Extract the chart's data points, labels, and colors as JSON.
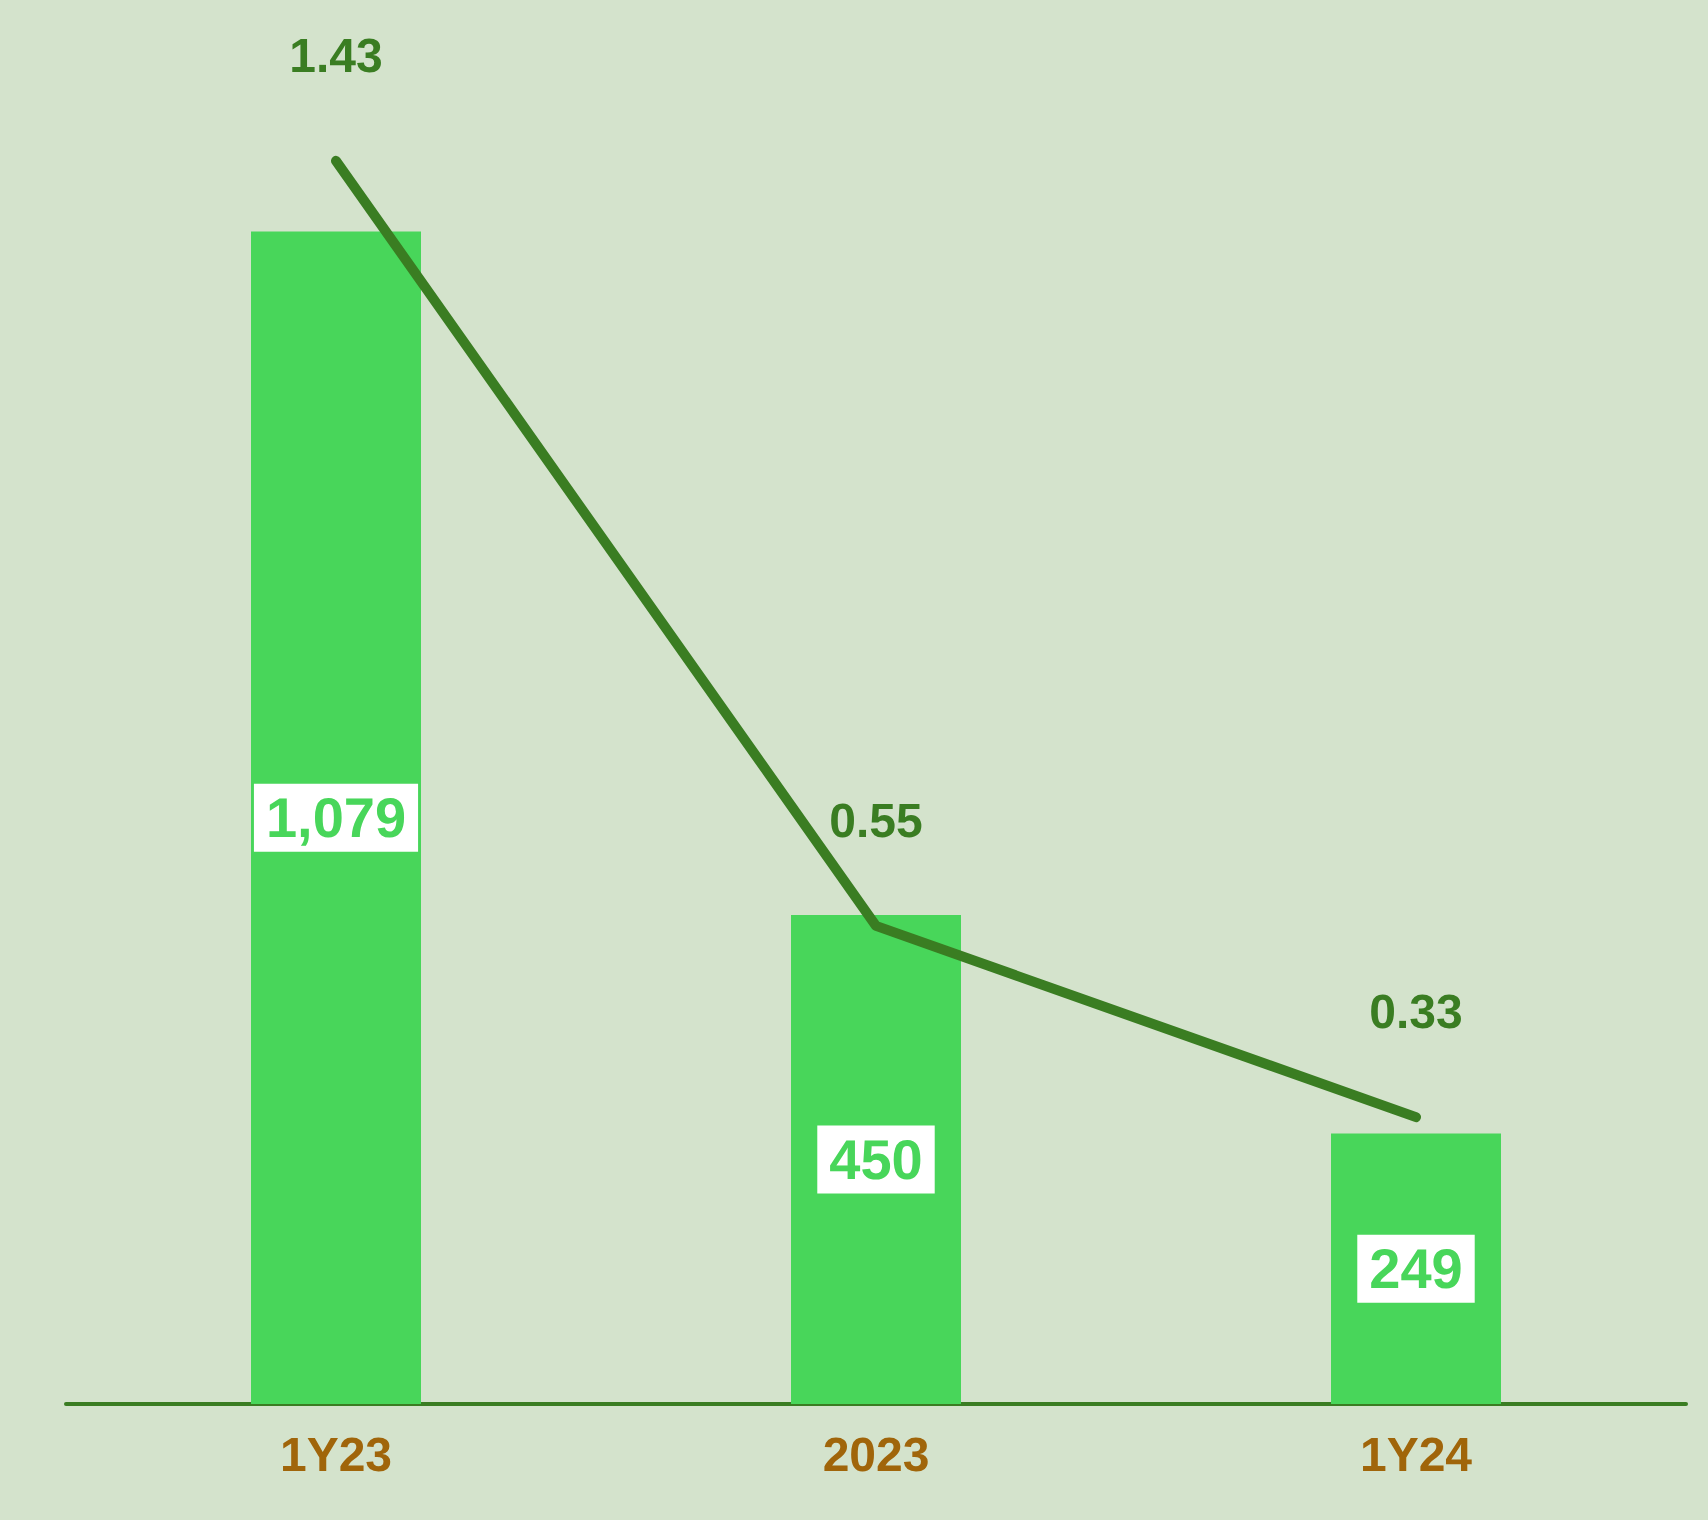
{
  "chart_data": {
    "type": "bar",
    "categories": [
      "1Y23",
      "2023",
      "1Y24"
    ],
    "series": [
      {
        "color": "#48d65a",
        "values": [
          1079,
          450,
          249
        ],
        "value_labels": [
          "1,079",
          "450",
          "249"
        ]
      },
      {
        "type": "line",
        "axis": "y2",
        "color": "#3a7d22",
        "values": [
          1.43,
          0.55,
          0.33
        ],
        "value_labels": [
          "1.43",
          "0.55",
          "0.33"
        ]
      }
    ],
    "tick_labels": "x",
    "grid": false,
    "marker": "none"
  }
}
